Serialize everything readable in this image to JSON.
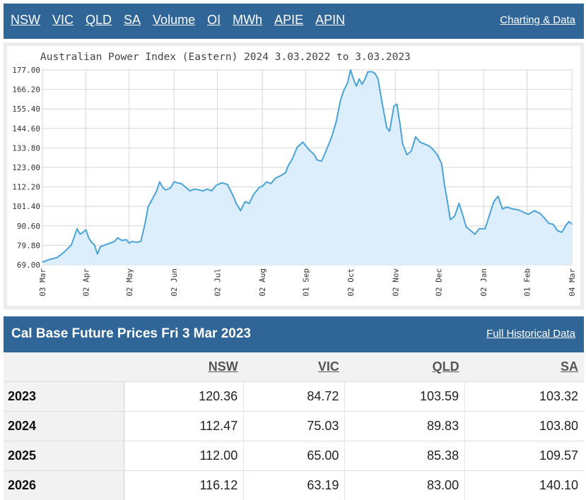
{
  "nav": {
    "links": [
      "NSW",
      "VIC",
      "QLD",
      "SA",
      "Volume",
      "OI",
      "MWh",
      "APIE",
      "APIN"
    ],
    "charting_link": "Charting & Data"
  },
  "chart_data": {
    "type": "area",
    "title": "Australian Power Index (Eastern) 2024 3.03.2022 to 3.03.2023",
    "y_ticks": [
      "177.00",
      "166.20",
      "155.40",
      "144.60",
      "133.80",
      "123.00",
      "112.20",
      "101.40",
      "90.60",
      "79.80",
      "69.00"
    ],
    "x_ticks": [
      "03 Mar",
      "02 Apr",
      "02 May",
      "02 Jun",
      "02 Jul",
      "02 Aug",
      "01 Sep",
      "02 Oct",
      "02 Nov",
      "02 Dec",
      "02 Jan",
      "01 Feb",
      "04 Mar"
    ],
    "ylim": [
      69.0,
      177.0
    ],
    "x_tick_days": [
      0,
      30,
      60,
      91,
      121,
      152,
      182,
      213,
      244,
      274,
      305,
      335,
      366
    ],
    "x": [
      0,
      5,
      10,
      15,
      20,
      22,
      24,
      26,
      28,
      30,
      32,
      34,
      36,
      38,
      40,
      43,
      45,
      50,
      52,
      55,
      58,
      60,
      62,
      65,
      68,
      71,
      73,
      75,
      77,
      79,
      81,
      83,
      85,
      87,
      89,
      91,
      93,
      96,
      99,
      102,
      105,
      108,
      111,
      114,
      117,
      120,
      124,
      128,
      132,
      134,
      137,
      140,
      143,
      146,
      148,
      150,
      152,
      155,
      158,
      161,
      165,
      168,
      170,
      173,
      176,
      180,
      184,
      188,
      190,
      193,
      196,
      200,
      203,
      206,
      208,
      211,
      213,
      215,
      217,
      219,
      221,
      223,
      225,
      228,
      230,
      232,
      235,
      238,
      240,
      243,
      245,
      247,
      249,
      252,
      255,
      258,
      261,
      264,
      267,
      270,
      273,
      276,
      278,
      280,
      282,
      285,
      288,
      290,
      293,
      296,
      299,
      302,
      306,
      310,
      312,
      315,
      318,
      321,
      325,
      329,
      333,
      336,
      340,
      344,
      347,
      350,
      353,
      356,
      359,
      362,
      364,
      366
    ],
    "y": [
      70.5,
      72.0,
      73.0,
      76.0,
      80.0,
      84.5,
      89.0,
      86.0,
      87.0,
      88.5,
      84.0,
      81.5,
      80.0,
      75.0,
      79.0,
      80.0,
      80.5,
      82.0,
      84.0,
      82.5,
      83.0,
      81.0,
      82.0,
      81.5,
      82.0,
      92.0,
      101.0,
      104.0,
      107.0,
      110.0,
      115.0,
      112.0,
      110.5,
      111.0,
      112.0,
      115.0,
      114.5,
      114.0,
      112.0,
      110.0,
      111.0,
      110.5,
      110.0,
      111.0,
      110.0,
      113.0,
      114.5,
      113.5,
      107.0,
      103.0,
      99.0,
      104.0,
      103.0,
      108.0,
      110.0,
      112.0,
      112.5,
      115.0,
      114.0,
      117.0,
      118.5,
      120.0,
      124.0,
      128.0,
      134.0,
      137.0,
      133.0,
      130.0,
      127.0,
      126.5,
      132.0,
      140.0,
      148.0,
      160.0,
      165.0,
      170.0,
      177.0,
      172.0,
      168.0,
      172.0,
      169.0,
      172.0,
      176.0,
      176.0,
      175.0,
      172.0,
      158.0,
      145.0,
      143.0,
      157.0,
      158.0,
      148.0,
      136.0,
      130.0,
      132.0,
      140.0,
      137.0,
      136.0,
      135.0,
      133.0,
      130.0,
      125.0,
      113.0,
      104.0,
      94.0,
      96.0,
      103.0,
      98.0,
      90.0,
      88.0,
      86.0,
      89.0,
      89.0,
      99.0,
      104.0,
      107.0,
      100.0,
      101.0,
      100.0,
      99.5,
      98.0,
      97.0,
      99.0,
      97.5,
      95.0,
      92.0,
      91.5,
      88.0,
      87.0,
      91.0,
      93.0,
      91.5
    ]
  },
  "section": {
    "title": "Cal Base Future Prices Fri 3 Mar 2023",
    "link": "Full Historical Data"
  },
  "table": {
    "headers": [
      "NSW",
      "VIC",
      "QLD",
      "SA"
    ],
    "rows": [
      {
        "year": "2023",
        "values": [
          "120.36",
          "84.72",
          "103.59",
          "103.32"
        ]
      },
      {
        "year": "2024",
        "values": [
          "112.47",
          "75.03",
          "89.83",
          "103.80"
        ]
      },
      {
        "year": "2025",
        "values": [
          "112.00",
          "65.00",
          "85.38",
          "109.57"
        ]
      },
      {
        "year": "2026",
        "values": [
          "116.12",
          "63.19",
          "83.00",
          "140.10"
        ]
      }
    ]
  },
  "colors": {
    "header_bg": "#2f6597",
    "line": "#4aa3d8",
    "area_fill": "#dcedfb"
  }
}
